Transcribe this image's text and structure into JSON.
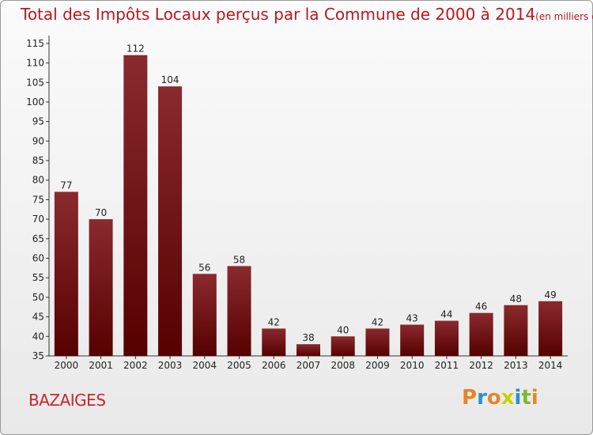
{
  "chart_data": {
    "type": "bar",
    "title": "Total des Impôts Locaux perçus par la Commune de 2000 à 2014",
    "unit_note": "(en milliers d'€)",
    "categories": [
      "2000",
      "2001",
      "2002",
      "2003",
      "2004",
      "2005",
      "2006",
      "2007",
      "2008",
      "2009",
      "2010",
      "2011",
      "2012",
      "2013",
      "2014"
    ],
    "values": [
      77,
      70,
      112,
      104,
      56,
      58,
      42,
      38,
      40,
      42,
      43,
      44,
      46,
      48,
      49
    ],
    "ylim": [
      35,
      117
    ],
    "yticks": [
      35,
      40,
      45,
      50,
      55,
      60,
      65,
      70,
      75,
      80,
      85,
      90,
      95,
      100,
      105,
      110,
      115
    ],
    "xlabel": "",
    "ylabel": "",
    "grid": false,
    "bar_color_top": "#8a2a2e",
    "bar_color_bottom": "#560000"
  },
  "footer": {
    "commune": "BAZAIGES",
    "brand": "Proxiti"
  },
  "colors": {
    "title": "#b81822",
    "commune": "#c8262f"
  }
}
